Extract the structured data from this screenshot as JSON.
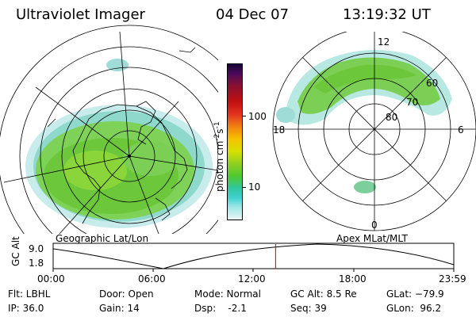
{
  "header": {
    "title": "Ultraviolet Imager",
    "date": "04 Dec 07",
    "time": "13:19:32 UT"
  },
  "left_panel": {
    "label": "Geographic Lat/Lon"
  },
  "right_panel": {
    "label": "Apex MLat/MLT",
    "mlt_labels": [
      "12",
      "18",
      "6",
      "0"
    ],
    "lat_labels": [
      "60",
      "70",
      "80"
    ]
  },
  "colorbar": {
    "unit_text": "photon cm",
    "exp1": "-2",
    "mid": "s",
    "exp2": "-1",
    "ticks": [
      "100",
      "10"
    ]
  },
  "timeline": {
    "axis_label": "GC Alt",
    "y_ticks": [
      "9.0",
      "1.8"
    ],
    "x_ticks": [
      "00:00",
      "06:00",
      "12:00",
      "18:00",
      "23:59"
    ],
    "current_time_fraction": 0.5552
  },
  "info": {
    "flt": "Flt: LBHL",
    "ip": "IP: 36.0",
    "door": "Door: Open",
    "gain": "Gain: 14",
    "mode": "Mode: Normal",
    "dsp": "Dsp:    -2.1",
    "gcalt": "GC Alt: 8.5 Re",
    "seq": "Seq: 39",
    "glat": "GLat: −79.9",
    "glon": "GLon:  96.2"
  },
  "colors": {
    "marker": "#cc0000",
    "grid": "#000000",
    "land": "#000000"
  }
}
